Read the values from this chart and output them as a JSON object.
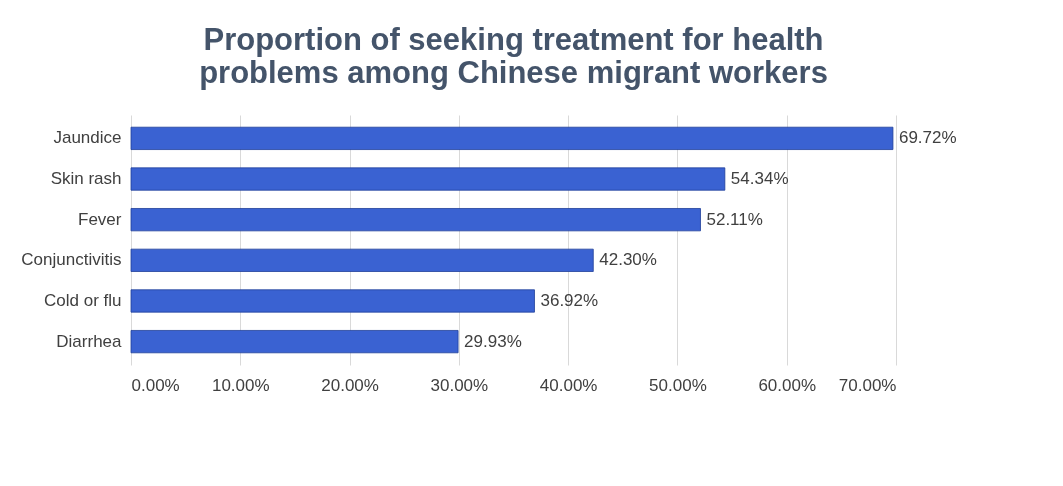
{
  "chart_data": {
    "type": "bar",
    "orientation": "horizontal",
    "title": "Proportion of seeking treatment for health problems among Chinese migrant workers",
    "categories": [
      "Jaundice",
      "Skin rash",
      "Fever",
      "Conjunctivitis",
      "Cold or flu",
      "Diarrhea"
    ],
    "values": [
      69.72,
      54.34,
      52.11,
      42.3,
      36.92,
      29.93
    ],
    "value_labels": [
      "69.72%",
      "54.34%",
      "52.11%",
      "42.30%",
      "36.92%",
      "29.93%"
    ],
    "color": "#3a62d2",
    "xlim": [
      0,
      70
    ],
    "xticks": [
      {
        "value": 0,
        "label": "0.00%"
      },
      {
        "value": 10,
        "label": "10.00%"
      },
      {
        "value": 20,
        "label": "20.00%"
      },
      {
        "value": 30,
        "label": "30.00%"
      },
      {
        "value": 40,
        "label": "40.00%"
      },
      {
        "value": 50,
        "label": "50.00%"
      },
      {
        "value": 60,
        "label": "60.00%"
      },
      {
        "value": 70,
        "label": "70.00%"
      }
    ],
    "grid": "x"
  }
}
